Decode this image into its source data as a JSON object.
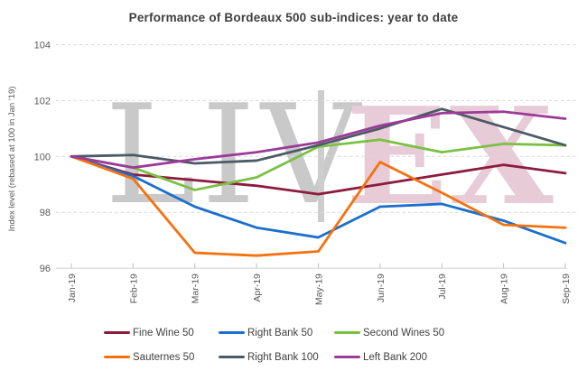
{
  "watermark": {
    "left_text": "LIV",
    "right_text": "EX"
  },
  "chart_data": {
    "type": "line",
    "title": "Performance of Bordeaux 500 sub-indices: year to date",
    "ylabel": "Index level (rebased at 100 in Jan '19)",
    "xlabel": "",
    "x": [
      "Jan-19",
      "Feb-19",
      "Mar-19",
      "Apr-19",
      "May-19",
      "Jun-19",
      "Jul-19",
      "Aug-19",
      "Sep-19"
    ],
    "ylim": [
      96,
      104
    ],
    "yticks": [
      96,
      98,
      100,
      102,
      104
    ],
    "grid": "horizontal-dashed",
    "legend_position": "bottom",
    "axis_colors": {
      "grid": "#d9d9d9",
      "axis": "#d9d9d9",
      "tick": "#bfbfbf",
      "tick_label": "#595959"
    },
    "series": [
      {
        "name": "Fine Wine 50",
        "color": "#8d1b3d",
        "values": [
          100,
          99.35,
          99.15,
          98.95,
          98.65,
          99.0,
          99.35,
          99.7,
          99.4
        ]
      },
      {
        "name": "Right Bank 50",
        "color": "#1b6fce",
        "values": [
          100,
          99.3,
          98.2,
          97.45,
          97.1,
          98.2,
          98.3,
          97.7,
          96.9
        ]
      },
      {
        "name": "Second Wines 50",
        "color": "#7ac143",
        "values": [
          100,
          99.6,
          98.8,
          99.25,
          100.35,
          100.6,
          100.15,
          100.45,
          100.4
        ]
      },
      {
        "name": "Sauternes 50",
        "color": "#f4720e",
        "values": [
          100,
          99.2,
          96.55,
          96.45,
          96.6,
          99.8,
          98.7,
          97.55,
          97.45
        ]
      },
      {
        "name": "Right Bank 100",
        "color": "#4b5a66",
        "values": [
          100,
          100.05,
          99.75,
          99.85,
          100.4,
          101.0,
          101.7,
          101.05,
          100.4
        ]
      },
      {
        "name": "Left Bank 200",
        "color": "#9c3a99",
        "values": [
          100,
          99.6,
          99.9,
          100.15,
          100.5,
          101.1,
          101.55,
          101.6,
          101.35
        ]
      }
    ]
  }
}
